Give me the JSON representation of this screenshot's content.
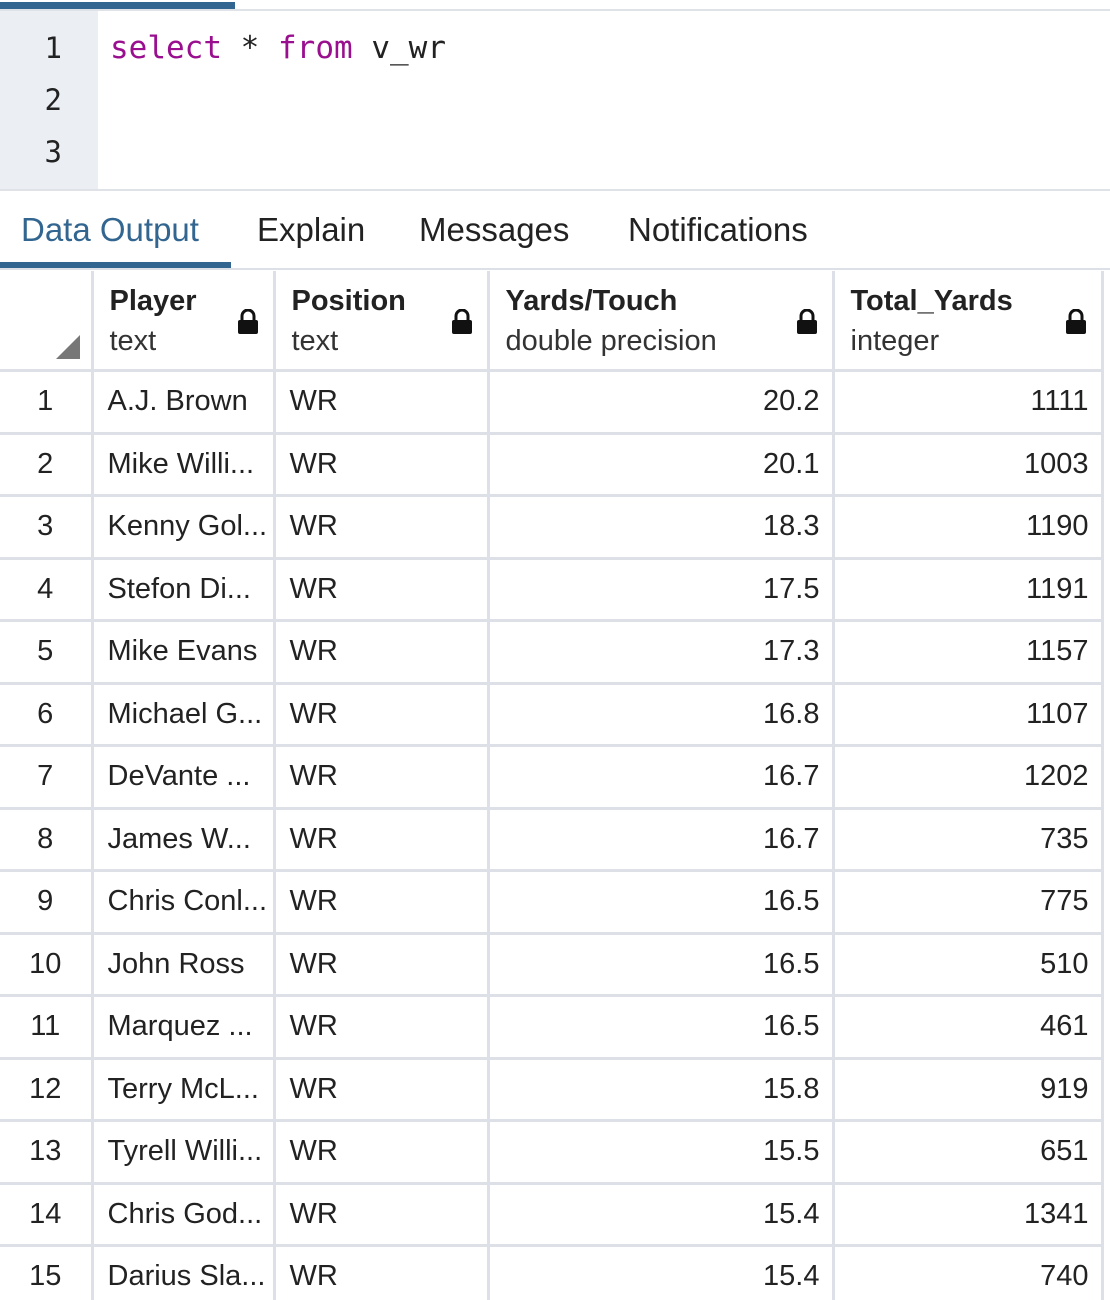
{
  "editor": {
    "line_numbers": [
      "1",
      "2",
      "3"
    ],
    "query": {
      "kw_select": "select",
      "star": "*",
      "kw_from": "from",
      "table": "v_wr"
    }
  },
  "tabs": [
    {
      "label": "Data Output",
      "active": true
    },
    {
      "label": "Explain",
      "active": false
    },
    {
      "label": "Messages",
      "active": false
    },
    {
      "label": "Notifications",
      "active": false
    }
  ],
  "grid": {
    "columns": [
      {
        "name": "Player",
        "type": "text"
      },
      {
        "name": "Position",
        "type": "text"
      },
      {
        "name": "Yards/Touch",
        "type": "double precision"
      },
      {
        "name": "Total_Yards",
        "type": "integer"
      }
    ],
    "rows": [
      {
        "n": "1",
        "player": "A.J. Brown",
        "position": "WR",
        "ypt": "20.2",
        "total": "1111"
      },
      {
        "n": "2",
        "player": "Mike Willi...",
        "position": "WR",
        "ypt": "20.1",
        "total": "1003"
      },
      {
        "n": "3",
        "player": "Kenny Gol...",
        "position": "WR",
        "ypt": "18.3",
        "total": "1190"
      },
      {
        "n": "4",
        "player": "Stefon Di...",
        "position": "WR",
        "ypt": "17.5",
        "total": "1191"
      },
      {
        "n": "5",
        "player": "Mike Evans",
        "position": "WR",
        "ypt": "17.3",
        "total": "1157"
      },
      {
        "n": "6",
        "player": "Michael G...",
        "position": "WR",
        "ypt": "16.8",
        "total": "1107"
      },
      {
        "n": "7",
        "player": "DeVante ...",
        "position": "WR",
        "ypt": "16.7",
        "total": "1202"
      },
      {
        "n": "8",
        "player": "James W...",
        "position": "WR",
        "ypt": "16.7",
        "total": "735"
      },
      {
        "n": "9",
        "player": "Chris Conl...",
        "position": "WR",
        "ypt": "16.5",
        "total": "775"
      },
      {
        "n": "10",
        "player": "John Ross",
        "position": "WR",
        "ypt": "16.5",
        "total": "510"
      },
      {
        "n": "11",
        "player": "Marquez ...",
        "position": "WR",
        "ypt": "16.5",
        "total": "461"
      },
      {
        "n": "12",
        "player": "Terry McL...",
        "position": "WR",
        "ypt": "15.8",
        "total": "919"
      },
      {
        "n": "13",
        "player": "Tyrell Willi...",
        "position": "WR",
        "ypt": "15.5",
        "total": "651"
      },
      {
        "n": "14",
        "player": "Chris God...",
        "position": "WR",
        "ypt": "15.4",
        "total": "1341"
      },
      {
        "n": "15",
        "player": "Darius Sla...",
        "position": "WR",
        "ypt": "15.4",
        "total": "740"
      }
    ]
  },
  "icons": {
    "column_lock": "lock-icon",
    "select_all": "corner-triangle-icon"
  },
  "colors": {
    "accent": "#326690",
    "keyword": "#990f8f",
    "gutter": "#ebeef3",
    "gridline": "#dde0e6"
  }
}
